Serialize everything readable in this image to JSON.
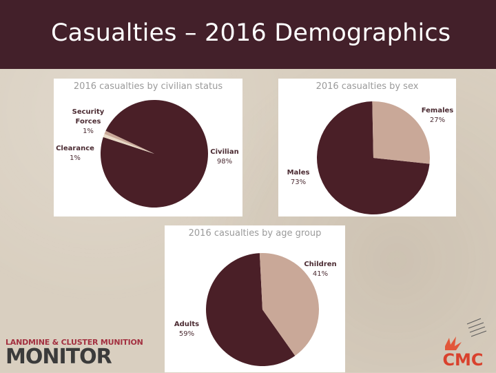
{
  "slide": {
    "title": "Casualties – 2016 Demographics"
  },
  "colors": {
    "title_bar": "#43202a",
    "pie_dark": "#4a1f27",
    "pie_light": "#c9a898",
    "pie_mid": "#e8d9c6",
    "label_text": "#4a2a31"
  },
  "chart_data": [
    {
      "type": "pie",
      "title": "2016 casualties by civilian status",
      "slices": [
        {
          "label": "Civilian",
          "value": 98,
          "value_label": "98%"
        },
        {
          "label": "Security Forces",
          "value": 1,
          "value_label": "1%"
        },
        {
          "label": "Clearance",
          "value": 1,
          "value_label": "1%"
        }
      ]
    },
    {
      "type": "pie",
      "title": "2016 casualties by sex",
      "slices": [
        {
          "label": "Males",
          "value": 73,
          "value_label": "73%"
        },
        {
          "label": "Females",
          "value": 27,
          "value_label": "27%"
        }
      ]
    },
    {
      "type": "pie",
      "title": "2016 casualties by age group",
      "slices": [
        {
          "label": "Adults",
          "value": 59,
          "value_label": "59%"
        },
        {
          "label": "Children",
          "value": 41,
          "value_label": "41%"
        }
      ]
    }
  ],
  "logos": {
    "left_line1": "LANDMINE & CLUSTER MUNITION",
    "left_line2": "MONITOR",
    "right_text": "CMC"
  }
}
